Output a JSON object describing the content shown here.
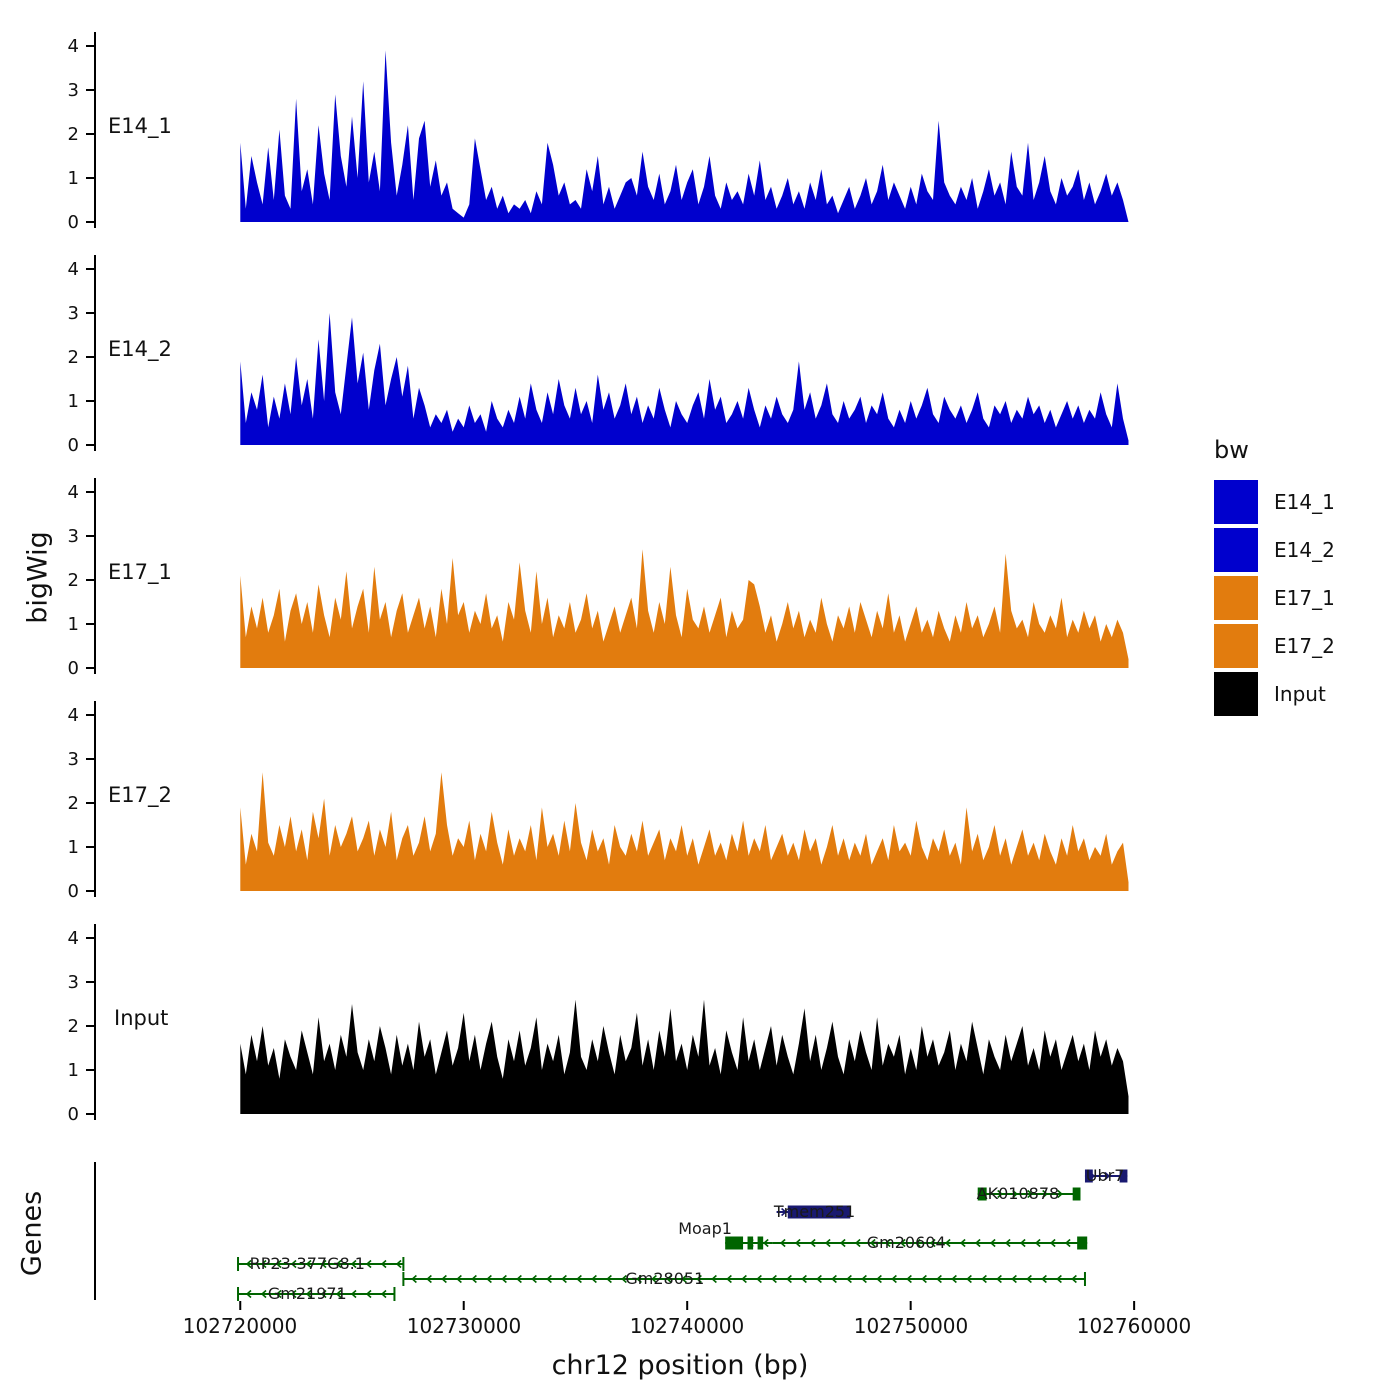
{
  "chart_data": {
    "type": "area",
    "x_axis_title": "chr12 position (bp)",
    "y_axis_title": "bigWig",
    "genes_panel_title": "Genes",
    "x_range_bp": [
      102713500,
      102762500
    ],
    "x_data_start_bp": 102720000,
    "x_data_step_bp": 250,
    "ylim": [
      0,
      4
    ],
    "y_ticks": [
      "0",
      "1",
      "2",
      "3",
      "4"
    ],
    "x_ticks": [
      {
        "bp": 102720000,
        "label": "102720000"
      },
      {
        "bp": 102730000,
        "label": "102730000"
      },
      {
        "bp": 102740000,
        "label": "102740000"
      },
      {
        "bp": 102750000,
        "label": "102750000"
      },
      {
        "bp": 102760000,
        "label": "102760000"
      }
    ],
    "legend": {
      "title": "bw",
      "items": [
        {
          "label": "E14_1",
          "color": "#0000CD"
        },
        {
          "label": "E14_2",
          "color": "#0000CD"
        },
        {
          "label": "E17_1",
          "color": "#E27C0E"
        },
        {
          "label": "E17_2",
          "color": "#E27C0E"
        },
        {
          "label": "Input",
          "color": "#000000"
        }
      ]
    },
    "tracks": [
      {
        "name": "E14_1",
        "color": "#0000CD",
        "values": [
          1.8,
          0.3,
          1.5,
          0.9,
          0.4,
          1.7,
          0.5,
          2.1,
          0.6,
          0.3,
          2.8,
          0.7,
          1.2,
          0.4,
          2.2,
          1.1,
          0.5,
          2.9,
          1.5,
          0.8,
          2.4,
          1.0,
          3.2,
          0.9,
          1.6,
          0.7,
          3.9,
          1.8,
          0.6,
          1.3,
          2.2,
          0.5,
          1.9,
          2.3,
          0.8,
          1.4,
          0.6,
          0.9,
          0.3,
          0.2,
          0.1,
          0.4,
          1.9,
          1.2,
          0.5,
          0.8,
          0.3,
          0.6,
          0.2,
          0.4,
          0.3,
          0.5,
          0.2,
          0.7,
          0.4,
          1.8,
          1.3,
          0.6,
          0.9,
          0.4,
          0.5,
          0.3,
          1.2,
          0.7,
          1.5,
          0.4,
          0.8,
          0.3,
          0.6,
          0.9,
          1.0,
          0.6,
          1.6,
          0.8,
          0.5,
          1.1,
          0.4,
          0.7,
          1.3,
          0.5,
          0.9,
          1.2,
          0.4,
          0.8,
          1.5,
          0.6,
          0.3,
          0.9,
          0.5,
          0.7,
          0.4,
          1.1,
          0.6,
          1.4,
          0.5,
          0.8,
          0.3,
          0.6,
          1.0,
          0.4,
          0.7,
          0.3,
          0.9,
          0.5,
          1.2,
          0.4,
          0.6,
          0.2,
          0.5,
          0.8,
          0.3,
          0.6,
          1.0,
          0.4,
          0.7,
          1.3,
          0.5,
          0.9,
          0.6,
          0.3,
          0.8,
          0.4,
          1.1,
          0.7,
          0.5,
          2.3,
          0.9,
          0.6,
          0.4,
          0.8,
          0.5,
          1.0,
          0.3,
          0.7,
          1.2,
          0.6,
          0.9,
          0.4,
          1.6,
          0.8,
          0.6,
          1.8,
          0.5,
          0.9,
          1.5,
          0.7,
          0.4,
          1.0,
          0.6,
          0.8,
          1.2,
          0.5,
          0.9,
          0.4,
          0.7,
          1.1,
          0.6,
          0.9,
          0.5,
          0.0
        ]
      },
      {
        "name": "E14_2",
        "color": "#0000CD",
        "values": [
          1.9,
          0.5,
          1.2,
          0.8,
          1.6,
          0.4,
          1.1,
          0.6,
          1.4,
          0.7,
          2.0,
          0.9,
          1.5,
          0.6,
          2.4,
          1.0,
          3.0,
          1.2,
          0.7,
          1.8,
          2.9,
          1.4,
          2.1,
          0.8,
          1.7,
          2.3,
          0.9,
          1.5,
          2.0,
          1.1,
          1.8,
          0.6,
          1.3,
          0.9,
          0.4,
          0.7,
          0.5,
          0.8,
          0.3,
          0.6,
          0.4,
          0.9,
          0.5,
          0.7,
          0.3,
          1.0,
          0.6,
          0.4,
          0.8,
          0.5,
          1.1,
          0.6,
          1.4,
          0.8,
          0.5,
          1.2,
          0.7,
          1.5,
          0.9,
          0.6,
          1.3,
          0.7,
          1.0,
          0.5,
          1.6,
          0.8,
          1.2,
          0.6,
          0.9,
          1.4,
          0.7,
          1.1,
          0.5,
          0.9,
          0.6,
          1.3,
          0.8,
          0.4,
          1.0,
          0.7,
          0.5,
          0.9,
          1.2,
          0.6,
          1.5,
          0.8,
          1.1,
          0.5,
          0.7,
          1.0,
          0.6,
          1.3,
          0.8,
          0.4,
          0.9,
          0.6,
          1.1,
          0.7,
          0.5,
          0.8,
          1.9,
          0.8,
          1.2,
          0.6,
          0.9,
          1.4,
          0.7,
          0.5,
          1.0,
          0.6,
          0.8,
          1.1,
          0.5,
          0.9,
          0.7,
          1.2,
          0.6,
          0.4,
          0.8,
          0.5,
          1.0,
          0.6,
          0.9,
          1.3,
          0.7,
          0.5,
          1.1,
          0.8,
          0.6,
          0.9,
          0.5,
          0.8,
          1.2,
          0.6,
          0.4,
          0.9,
          0.7,
          1.0,
          0.5,
          0.8,
          0.6,
          1.1,
          0.7,
          0.9,
          0.5,
          0.8,
          0.4,
          0.7,
          1.0,
          0.6,
          0.9,
          0.5,
          0.8,
          0.6,
          1.2,
          0.7,
          0.4,
          1.4,
          0.6,
          0.1
        ]
      },
      {
        "name": "E17_1",
        "color": "#E27C0E",
        "values": [
          2.1,
          0.7,
          1.4,
          0.9,
          1.6,
          0.8,
          1.2,
          1.8,
          0.6,
          1.3,
          1.7,
          1.0,
          1.5,
          0.8,
          1.9,
          1.2,
          0.7,
          1.6,
          1.1,
          2.2,
          0.9,
          1.4,
          1.8,
          0.8,
          2.3,
          1.1,
          1.5,
          0.7,
          1.3,
          1.7,
          0.8,
          1.2,
          1.6,
          0.9,
          1.4,
          0.7,
          1.8,
          1.0,
          2.5,
          1.2,
          1.5,
          0.8,
          1.3,
          1.0,
          1.7,
          0.9,
          1.2,
          0.6,
          1.5,
          1.1,
          2.4,
          1.3,
          0.8,
          2.2,
          1.0,
          1.6,
          0.7,
          1.2,
          0.9,
          1.5,
          0.8,
          1.1,
          1.7,
          0.9,
          1.3,
          0.6,
          1.0,
          1.4,
          0.8,
          1.2,
          1.6,
          0.9,
          2.7,
          1.3,
          0.8,
          1.5,
          1.0,
          2.3,
          1.2,
          0.7,
          1.8,
          1.1,
          0.9,
          1.4,
          0.8,
          1.2,
          1.6,
          0.7,
          1.3,
          0.9,
          1.1,
          2.0,
          1.9,
          1.4,
          0.8,
          1.2,
          0.6,
          1.0,
          1.5,
          0.9,
          1.3,
          0.7,
          1.1,
          0.8,
          1.6,
          1.0,
          0.6,
          1.2,
          0.9,
          1.4,
          0.8,
          1.5,
          1.1,
          0.7,
          1.3,
          0.9,
          1.7,
          0.8,
          1.2,
          0.6,
          1.0,
          1.4,
          0.8,
          1.1,
          0.7,
          1.3,
          0.9,
          0.6,
          1.2,
          0.8,
          1.5,
          0.9,
          1.2,
          0.7,
          1.0,
          1.4,
          0.8,
          2.6,
          1.3,
          0.9,
          1.1,
          0.7,
          1.5,
          1.0,
          0.8,
          1.2,
          0.9,
          1.6,
          0.7,
          1.1,
          0.8,
          1.3,
          0.9,
          1.2,
          0.6,
          1.0,
          0.7,
          1.1,
          0.8,
          0.2
        ]
      },
      {
        "name": "E17_2",
        "color": "#E27C0E",
        "values": [
          1.9,
          0.6,
          1.3,
          0.9,
          2.7,
          1.1,
          0.8,
          1.5,
          1.0,
          1.7,
          0.9,
          1.4,
          0.7,
          1.8,
          1.2,
          2.1,
          0.8,
          1.5,
          1.0,
          1.3,
          1.7,
          0.9,
          1.2,
          1.6,
          0.8,
          1.4,
          1.0,
          1.8,
          0.7,
          1.2,
          1.5,
          0.8,
          1.1,
          1.7,
          0.9,
          1.3,
          2.7,
          1.5,
          0.8,
          1.2,
          1.0,
          1.6,
          0.7,
          1.3,
          0.9,
          1.8,
          1.1,
          0.6,
          1.4,
          0.8,
          1.2,
          0.9,
          1.5,
          0.7,
          1.9,
          1.0,
          1.3,
          0.8,
          1.6,
          0.9,
          2.0,
          1.1,
          0.7,
          1.4,
          0.9,
          1.2,
          0.6,
          1.5,
          1.0,
          0.8,
          1.3,
          0.9,
          1.6,
          0.8,
          1.1,
          1.4,
          0.7,
          1.2,
          0.9,
          1.5,
          0.8,
          1.2,
          0.6,
          1.0,
          1.4,
          0.8,
          1.1,
          0.7,
          1.3,
          0.9,
          1.6,
          0.8,
          1.2,
          0.9,
          1.5,
          0.7,
          1.0,
          1.3,
          0.8,
          1.1,
          0.7,
          1.4,
          0.9,
          1.2,
          0.6,
          1.0,
          1.5,
          0.8,
          1.2,
          0.7,
          1.1,
          0.8,
          1.3,
          0.6,
          0.9,
          1.2,
          0.7,
          1.5,
          0.9,
          1.1,
          0.8,
          1.6,
          1.0,
          0.7,
          1.2,
          0.9,
          1.4,
          0.8,
          1.1,
          0.6,
          1.9,
          0.9,
          1.3,
          0.7,
          1.0,
          1.5,
          0.8,
          1.2,
          0.6,
          1.0,
          1.4,
          0.8,
          1.1,
          0.7,
          1.3,
          0.9,
          0.6,
          1.2,
          0.8,
          1.5,
          0.9,
          1.2,
          0.7,
          1.0,
          0.8,
          1.3,
          0.6,
          0.9,
          1.1,
          0.2
        ]
      },
      {
        "name": "Input",
        "color": "#000000",
        "values": [
          1.6,
          0.9,
          1.8,
          1.2,
          2.0,
          1.1,
          1.5,
          0.8,
          1.7,
          1.3,
          1.0,
          1.9,
          1.4,
          0.9,
          2.2,
          1.2,
          1.6,
          1.0,
          1.8,
          1.3,
          2.5,
          1.4,
          1.0,
          1.7,
          1.2,
          2.0,
          1.5,
          0.9,
          1.8,
          1.1,
          1.6,
          1.0,
          2.1,
          1.3,
          1.7,
          0.9,
          1.4,
          1.9,
          1.1,
          1.5,
          2.3,
          1.2,
          1.8,
          1.0,
          1.6,
          2.1,
          1.3,
          0.8,
          1.7,
          1.2,
          1.9,
          1.1,
          1.5,
          2.2,
          1.0,
          1.6,
          1.2,
          1.8,
          0.9,
          1.4,
          2.6,
          1.3,
          1.0,
          1.7,
          1.2,
          2.0,
          1.4,
          0.9,
          1.8,
          1.2,
          1.5,
          2.3,
          1.1,
          1.7,
          1.0,
          1.9,
          1.3,
          2.4,
          1.2,
          1.6,
          1.0,
          1.8,
          1.3,
          2.6,
          1.1,
          1.5,
          0.9,
          1.9,
          1.4,
          1.0,
          2.2,
          1.2,
          1.7,
          1.0,
          1.5,
          2.0,
          1.1,
          1.8,
          1.3,
          0.9,
          1.6,
          2.4,
          1.2,
          1.8,
          1.0,
          1.5,
          2.1,
          1.3,
          0.9,
          1.7,
          1.2,
          1.9,
          1.4,
          1.0,
          2.2,
          1.1,
          1.6,
          1.3,
          1.8,
          0.9,
          1.5,
          1.0,
          2.0,
          1.3,
          1.7,
          1.1,
          1.4,
          1.9,
          1.0,
          1.6,
          1.2,
          2.1,
          1.5,
          0.9,
          1.7,
          1.3,
          1.0,
          1.8,
          1.2,
          1.6,
          2.0,
          1.1,
          1.5,
          1.0,
          1.9,
          1.3,
          1.7,
          1.0,
          1.4,
          1.8,
          1.2,
          1.6,
          1.0,
          1.9,
          1.3,
          1.7,
          1.1,
          1.5,
          1.2,
          0.4
        ]
      }
    ],
    "genes": [
      {
        "name": "Ubr7",
        "color": "#191970",
        "strand": "+",
        "row": 0,
        "start": 102757800,
        "end": 102759700,
        "exons": [
          [
            102757800,
            102758150
          ],
          [
            102759350,
            102759700
          ]
        ],
        "label_bp": 102758700,
        "label_offset": "on"
      },
      {
        "name": "AK010878",
        "color": "#006400",
        "strand": "+",
        "row": 1,
        "start": 102753000,
        "end": 102757600,
        "exons": [
          [
            102753000,
            102753400
          ],
          [
            102757250,
            102757600
          ]
        ],
        "label_bp": 102754800,
        "label_offset": "on"
      },
      {
        "name": "Tmem251",
        "color": "#191970",
        "strand": "+",
        "row": 2,
        "start": 102744000,
        "end": 102747300,
        "exons": [
          [
            102744500,
            102747300
          ]
        ],
        "label_bp": 102745700,
        "label_offset": "on"
      },
      {
        "name": "Moap1",
        "color": "#006400",
        "strand": "-",
        "row": 3,
        "start": 102741700,
        "end": 102743800,
        "exons": [
          [
            102741700,
            102742500
          ],
          [
            102742700,
            102742950
          ],
          [
            102743150,
            102743400
          ]
        ],
        "label_bp": 102740800,
        "label_offset": "above"
      },
      {
        "name": "Gm20604",
        "color": "#006400",
        "strand": "-",
        "row": 3,
        "start": 102743800,
        "end": 102757900,
        "exons": [
          [
            102757450,
            102757900
          ]
        ],
        "label_bp": 102749800,
        "label_offset": "on"
      },
      {
        "name": "RP23-377G8.1",
        "color": "#006400",
        "strand": "-",
        "row": 4,
        "start": 102719900,
        "end": 102727300,
        "end_bars": true,
        "exons": [],
        "label_bp": 102723000,
        "label_offset": "on"
      },
      {
        "name": "Gm28051",
        "color": "#006400",
        "strand": "-",
        "row": 5,
        "start": 102727300,
        "end": 102757800,
        "end_bars": true,
        "exons": [],
        "label_bp": 102739000,
        "label_offset": "on"
      },
      {
        "name": "Gm21971",
        "color": "#006400",
        "strand": "-",
        "row": 6,
        "start": 102719900,
        "end": 102726900,
        "end_bars": true,
        "exons": [],
        "label_bp": 102723000,
        "label_offset": "on"
      }
    ]
  }
}
